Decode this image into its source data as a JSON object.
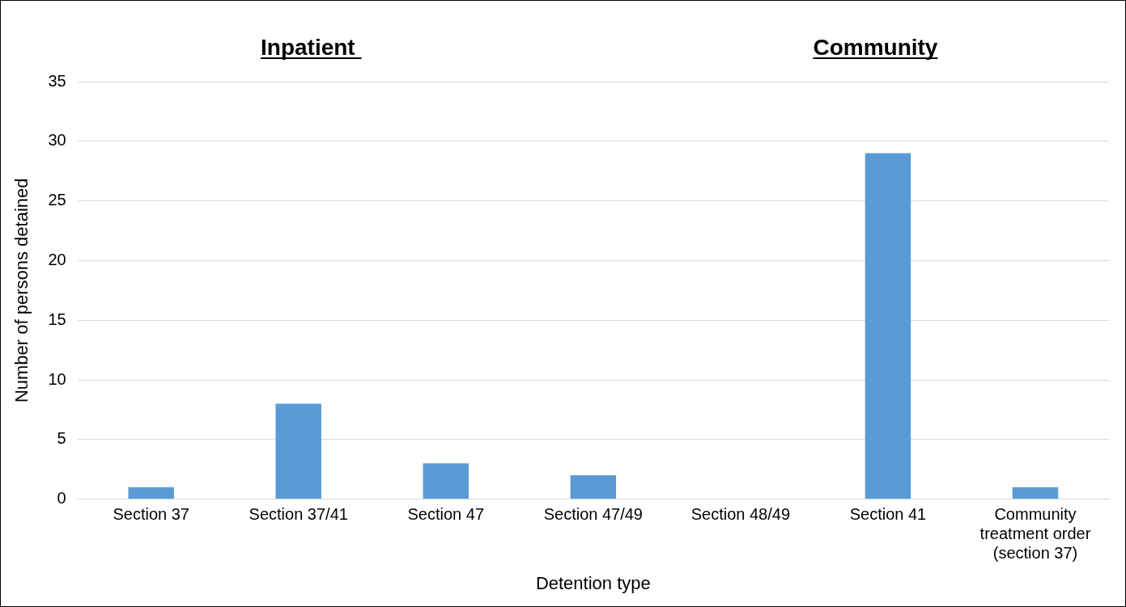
{
  "chart_data": {
    "type": "bar",
    "xlabel": "Detention type",
    "ylabel": "Number of persons detained",
    "annotations": [
      "Inpatient ",
      "Community"
    ],
    "categories": [
      "Section 37",
      "Section 37/41",
      "Section 47",
      "Section 47/49",
      "Section 48/49",
      "Section 41",
      "Community treatment order (section 37)"
    ],
    "values": [
      1,
      8,
      3,
      2,
      0,
      29,
      1
    ],
    "color": "#5b9bd5",
    "ylim": [
      0,
      35
    ],
    "yticks": [
      0,
      5,
      10,
      15,
      20,
      25,
      30,
      35
    ],
    "grid": "y",
    "legend": false
  }
}
